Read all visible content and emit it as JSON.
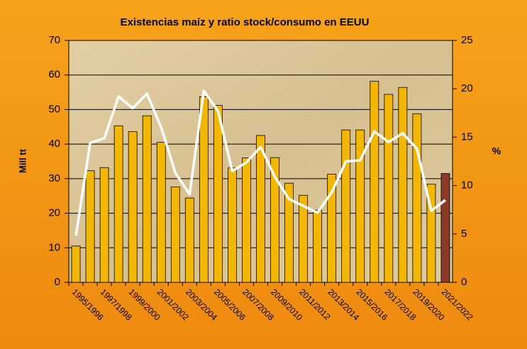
{
  "chart_data": {
    "type": "bar_line",
    "title": "Existencias maíz y ratio stock/consumo en EEUU",
    "ylabel": "Mill tt",
    "y2label": "%",
    "categories": [
      "1995/1996",
      null,
      "1997/1998",
      null,
      "1999/2000",
      null,
      "2001/2002",
      null,
      "2003/2004",
      null,
      "2005/2006",
      null,
      "2007/2008",
      null,
      "2009/2010",
      null,
      "2011/2012",
      null,
      "2013/2014",
      null,
      "2015/2016",
      null,
      "2017/2018",
      null,
      "2019/2020",
      null,
      "2021/2022"
    ],
    "series": [
      {
        "type": "bar",
        "color": "#f2b705",
        "colors": [
          "#f2b705",
          "#f2b705",
          "#f2b705",
          "#f2b705",
          "#f2b705",
          "#f2b705",
          "#f2b705",
          "#f2b705",
          "#f2b705",
          "#f2b705",
          "#f2b705",
          "#f2b705",
          "#f2b705",
          "#f2b705",
          "#f2b705",
          "#f2b705",
          "#f2b705",
          "#f2b705",
          "#f2b705",
          "#f2b705",
          "#f2b705",
          "#f2b705",
          "#f2b705",
          "#f2b705",
          "#f2b705",
          "#f2b705",
          "#8b3a2a"
        ],
        "values": [
          10.5,
          32.3,
          33.2,
          45.3,
          43.6,
          48.2,
          40.5,
          27.6,
          24.4,
          53.7,
          51.2,
          33.1,
          36.0,
          42.5,
          36.1,
          28.7,
          25.2,
          20.9,
          31.3,
          44.1,
          44.1,
          58.2,
          54.4,
          56.4,
          48.8,
          28.4,
          31.5
        ]
      },
      {
        "type": "line",
        "axis": "y2",
        "color": "#ffffff",
        "values": [
          4.8,
          14.4,
          14.9,
          19.2,
          18.0,
          19.5,
          16.0,
          11.3,
          9.1,
          19.8,
          17.7,
          11.5,
          12.4,
          14.0,
          10.9,
          8.6,
          7.9,
          7.2,
          9.3,
          12.5,
          12.6,
          15.6,
          14.5,
          15.4,
          13.8,
          7.4,
          8.5
        ]
      }
    ],
    "ylim": [
      0,
      70
    ],
    "yticks": [
      0,
      10,
      20,
      30,
      40,
      50,
      60,
      70
    ],
    "y2lim": [
      0,
      25
    ],
    "y2ticks": [
      0,
      5,
      10,
      15,
      20,
      25
    ],
    "grid": true
  }
}
